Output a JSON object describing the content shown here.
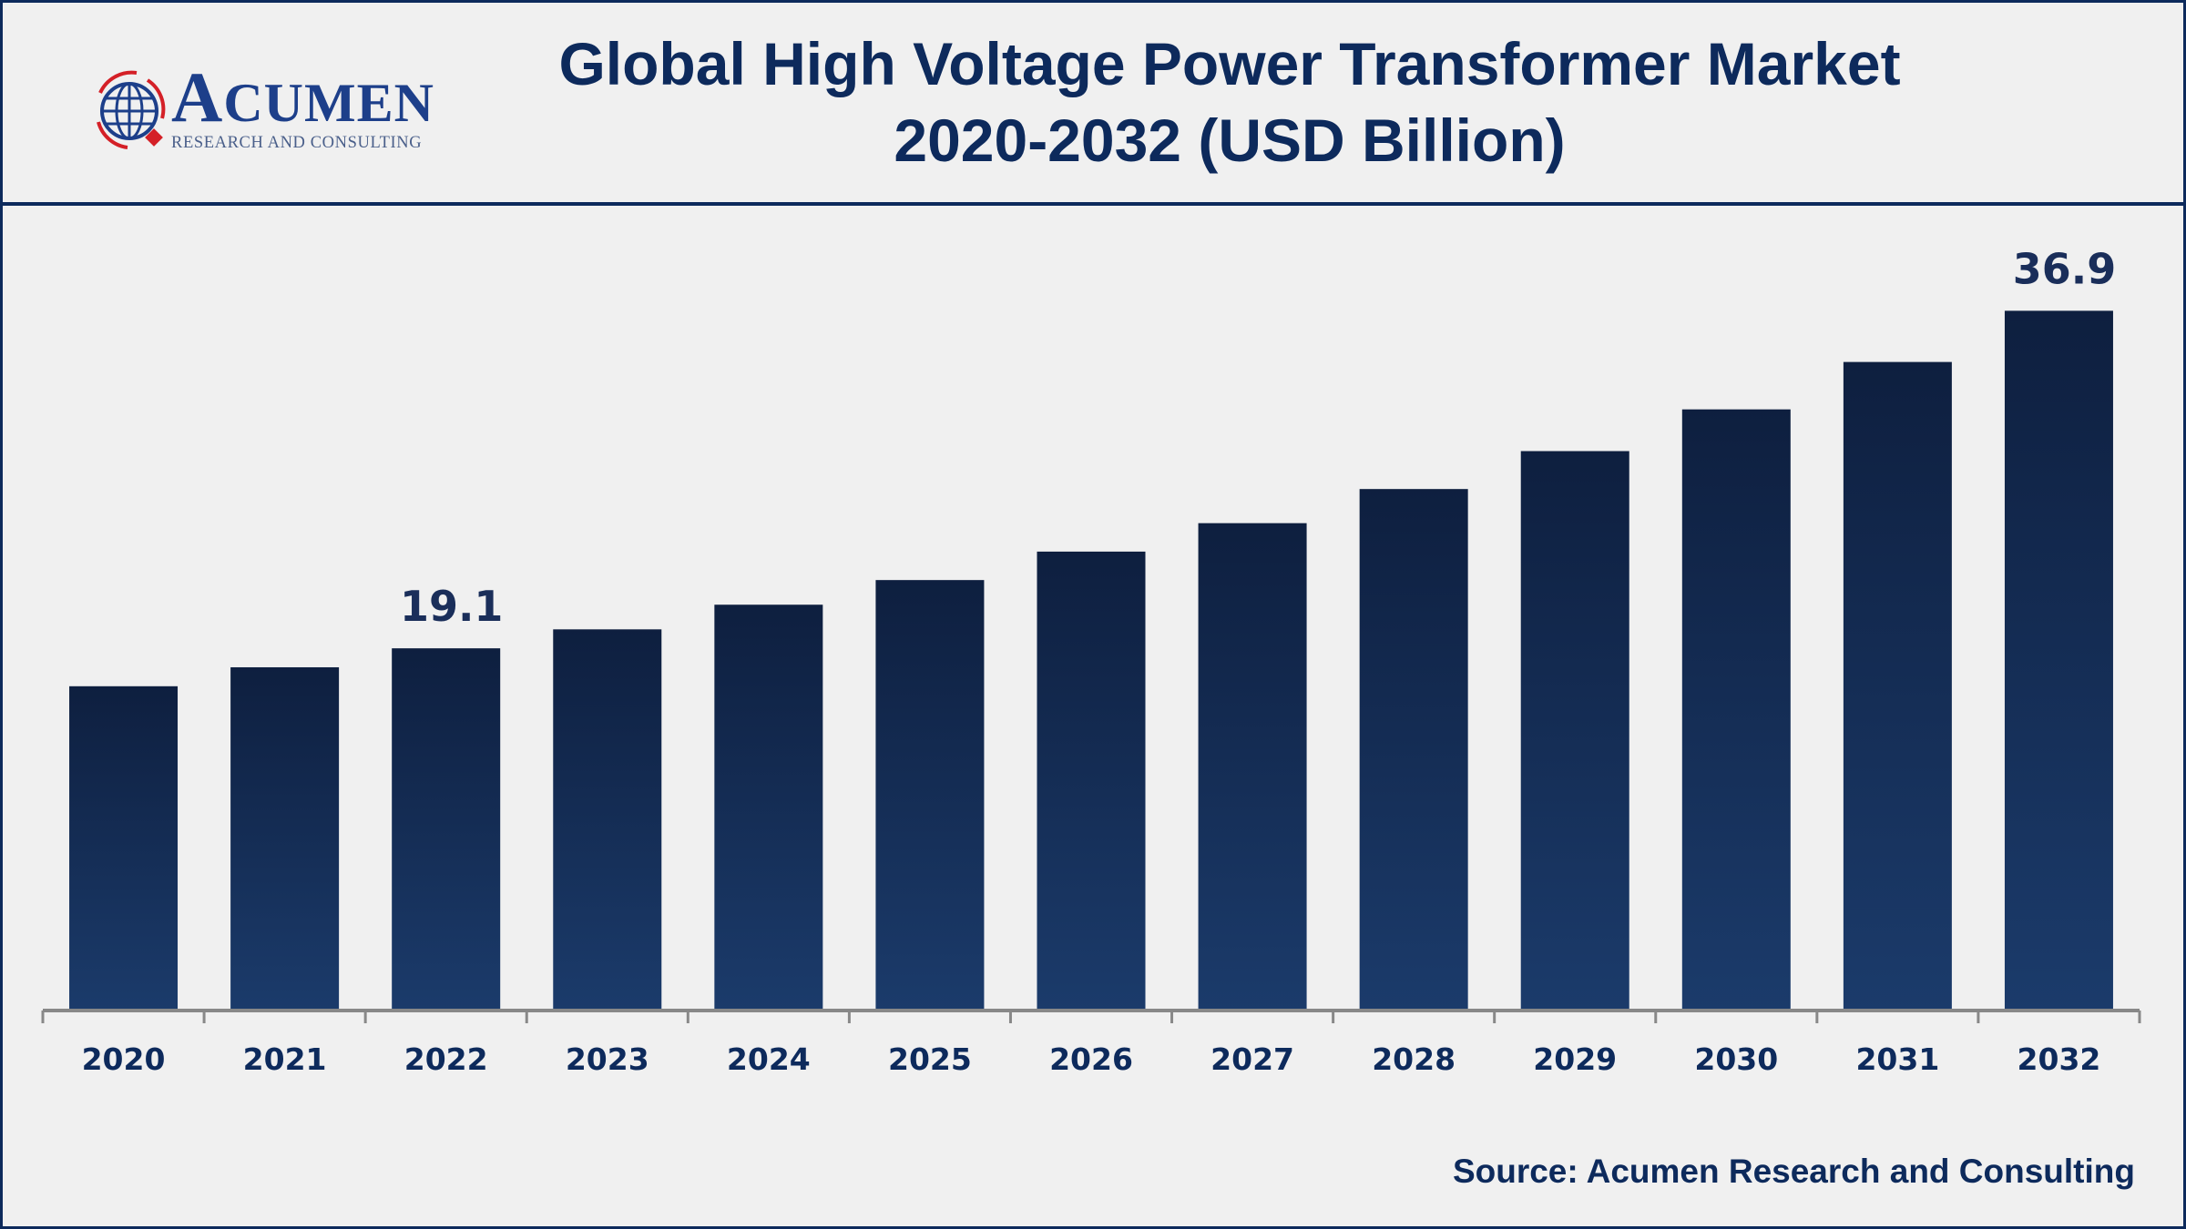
{
  "header": {
    "logo_text": "ACUMEN",
    "logo_subtext": "RESEARCH AND CONSULTING",
    "title_line1": "Global High Voltage Power Transformer Market",
    "title_line2": "2020-2032 (USD Billion)"
  },
  "source": "Source: Acumen Research and Consulting",
  "colors": {
    "brand_navy": "#0d2a5c",
    "bar_top": "#0e1f3f",
    "bar_bottom": "#1b3b6b",
    "logo_red": "#d42027",
    "axis": "#888888"
  },
  "chart_data": {
    "type": "bar",
    "title": "Global High Voltage Power Transformer Market 2020-2032 (USD Billion)",
    "xlabel": "",
    "ylabel": "",
    "categories": [
      "2020",
      "2021",
      "2022",
      "2023",
      "2024",
      "2025",
      "2026",
      "2027",
      "2028",
      "2029",
      "2030",
      "2031",
      "2032"
    ],
    "values": [
      17.1,
      18.1,
      19.1,
      20.1,
      21.4,
      22.7,
      24.2,
      25.7,
      27.5,
      29.5,
      31.7,
      34.2,
      36.9
    ],
    "data_labels": [
      null,
      null,
      "19.1",
      null,
      null,
      null,
      null,
      null,
      null,
      null,
      null,
      null,
      "36.9"
    ],
    "ylim": [
      0,
      40
    ],
    "grid": false,
    "legend": "none"
  }
}
